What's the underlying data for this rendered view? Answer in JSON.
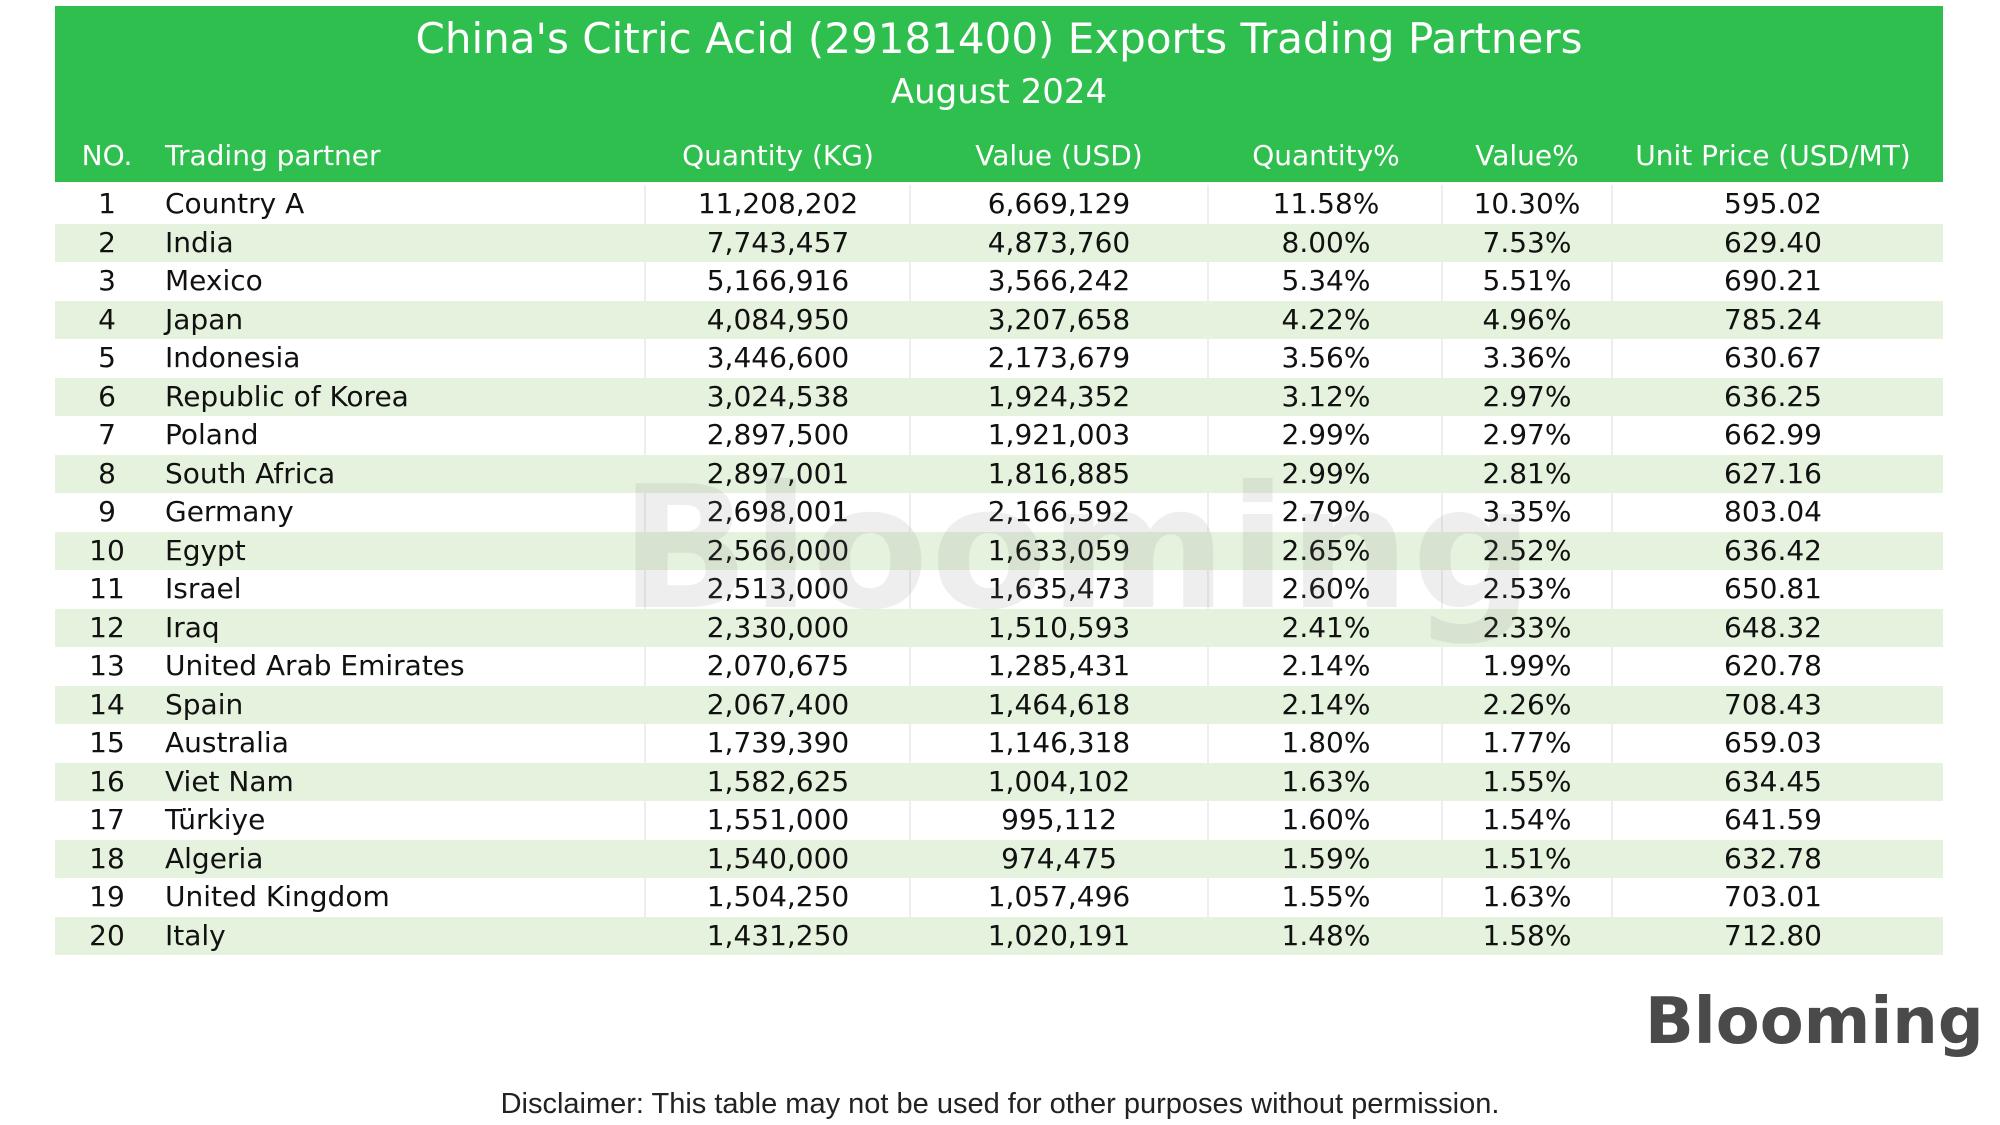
{
  "header": {
    "title": "China's Citric Acid (29181400) Exports Trading Partners",
    "subtitle": "August 2024"
  },
  "table": {
    "columns": [
      "NO.",
      "Trading partner",
      "Quantity (KG)",
      "Value (USD)",
      "Quantity%",
      "Value%",
      "Unit Price (USD/MT)"
    ],
    "rows": [
      [
        "1",
        "Country A",
        "11,208,202",
        "6,669,129",
        "11.58%",
        "10.30%",
        "595.02"
      ],
      [
        "2",
        "India",
        "7,743,457",
        "4,873,760",
        "8.00%",
        "7.53%",
        "629.40"
      ],
      [
        "3",
        "Mexico",
        "5,166,916",
        "3,566,242",
        "5.34%",
        "5.51%",
        "690.21"
      ],
      [
        "4",
        "Japan",
        "4,084,950",
        "3,207,658",
        "4.22%",
        "4.96%",
        "785.24"
      ],
      [
        "5",
        "Indonesia",
        "3,446,600",
        "2,173,679",
        "3.56%",
        "3.36%",
        "630.67"
      ],
      [
        "6",
        "Republic of Korea",
        "3,024,538",
        "1,924,352",
        "3.12%",
        "2.97%",
        "636.25"
      ],
      [
        "7",
        "Poland",
        "2,897,500",
        "1,921,003",
        "2.99%",
        "2.97%",
        "662.99"
      ],
      [
        "8",
        "South Africa",
        "2,897,001",
        "1,816,885",
        "2.99%",
        "2.81%",
        "627.16"
      ],
      [
        "9",
        "Germany",
        "2,698,001",
        "2,166,592",
        "2.79%",
        "3.35%",
        "803.04"
      ],
      [
        "10",
        "Egypt",
        "2,566,000",
        "1,633,059",
        "2.65%",
        "2.52%",
        "636.42"
      ],
      [
        "11",
        "Israel",
        "2,513,000",
        "1,635,473",
        "2.60%",
        "2.53%",
        "650.81"
      ],
      [
        "12",
        "Iraq",
        "2,330,000",
        "1,510,593",
        "2.41%",
        "2.33%",
        "648.32"
      ],
      [
        "13",
        "United Arab Emirates",
        "2,070,675",
        "1,285,431",
        "2.14%",
        "1.99%",
        "620.78"
      ],
      [
        "14",
        "Spain",
        "2,067,400",
        "1,464,618",
        "2.14%",
        "2.26%",
        "708.43"
      ],
      [
        "15",
        "Australia",
        "1,739,390",
        "1,146,318",
        "1.80%",
        "1.77%",
        "659.03"
      ],
      [
        "16",
        "Viet Nam",
        "1,582,625",
        "1,004,102",
        "1.63%",
        "1.55%",
        "634.45"
      ],
      [
        "17",
        "Türkiye",
        "1,551,000",
        "995,112",
        "1.60%",
        "1.54%",
        "641.59"
      ],
      [
        "18",
        "Algeria",
        "1,540,000",
        "974,475",
        "1.59%",
        "1.51%",
        "632.78"
      ],
      [
        "19",
        "United Kingdom",
        "1,504,250",
        "1,057,496",
        "1.55%",
        "1.63%",
        "703.01"
      ],
      [
        "20",
        "Italy",
        "1,431,250",
        "1,020,191",
        "1.48%",
        "1.58%",
        "712.80"
      ]
    ]
  },
  "watermark": "Blooming",
  "logo": "Blooming",
  "disclaimer": "Disclaimer: This table may not be used for other purposes without permission."
}
